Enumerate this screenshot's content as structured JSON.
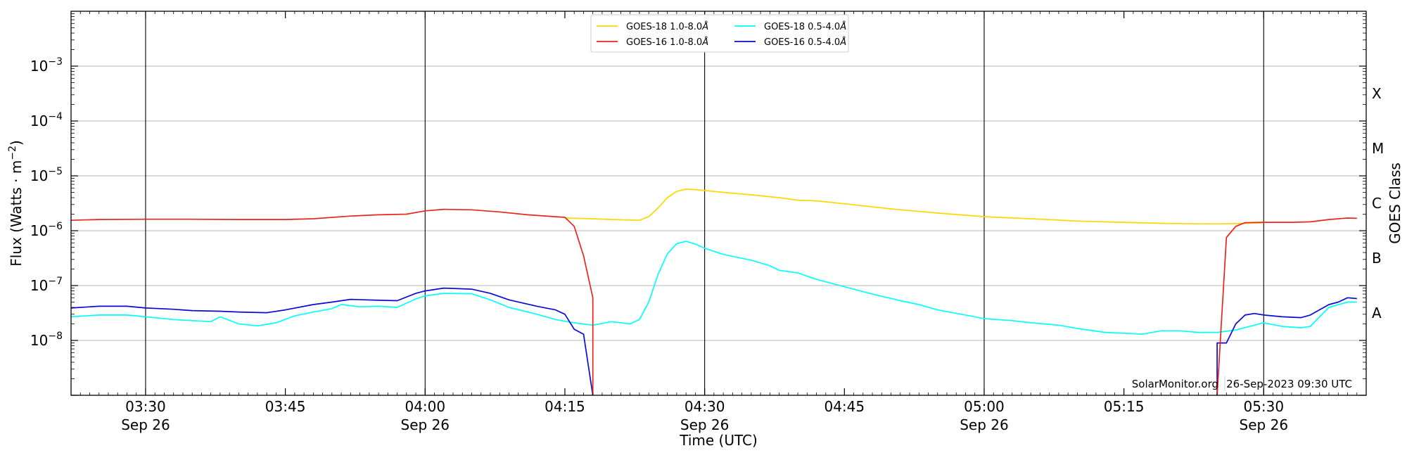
{
  "chart_data": {
    "type": "line",
    "xlabel": "Time (UTC)",
    "ylabel_parts": [
      "Flux (Watts · m",
      "−2",
      ")"
    ],
    "right_axis_label": "GOES Class",
    "xlim": [
      "03:22",
      "05:41"
    ],
    "ylim": [
      1e-09,
      0.01
    ],
    "y_scale": "log",
    "grid": "horizontal at decades",
    "vertical_lines_at": [
      "03:30",
      "04:00",
      "04:30",
      "05:00",
      "05:30"
    ],
    "x_ticks": [
      {
        "time": "03:30",
        "label": "03:30",
        "date": "Sep 26"
      },
      {
        "time": "03:45",
        "label": "03:45",
        "date": ""
      },
      {
        "time": "04:00",
        "label": "04:00",
        "date": "Sep 26"
      },
      {
        "time": "04:15",
        "label": "04:15",
        "date": ""
      },
      {
        "time": "04:30",
        "label": "04:30",
        "date": "Sep 26"
      },
      {
        "time": "04:45",
        "label": "04:45",
        "date": ""
      },
      {
        "time": "05:00",
        "label": "05:00",
        "date": "Sep 26"
      },
      {
        "time": "05:15",
        "label": "05:15",
        "date": ""
      },
      {
        "time": "05:30",
        "label": "05:30",
        "date": "Sep 26"
      }
    ],
    "y_ticks": [
      {
        "exp": -8,
        "label": "10",
        "sup": "−8"
      },
      {
        "exp": -7,
        "label": "10",
        "sup": "−7"
      },
      {
        "exp": -6,
        "label": "10",
        "sup": "−6"
      },
      {
        "exp": -5,
        "label": "10",
        "sup": "−5"
      },
      {
        "exp": -4,
        "label": "10",
        "sup": "−4"
      },
      {
        "exp": -3,
        "label": "10",
        "sup": "−3"
      }
    ],
    "goes_classes": [
      {
        "label": "A",
        "exp": -7.5
      },
      {
        "label": "B",
        "exp": -6.5
      },
      {
        "label": "C",
        "exp": -5.5
      },
      {
        "label": "M",
        "exp": -4.5
      },
      {
        "label": "X",
        "exp": -3.5
      }
    ],
    "legend_position": "top-center",
    "series": [
      {
        "name": "GOES-18 1.0-8.0Å",
        "name_text": "GOES-18 1.0-8.0",
        "name_unit": "Å",
        "color": "#FFD700",
        "points": [
          [
            "04:15",
            1.7e-06
          ],
          [
            "04:18",
            1.65e-06
          ],
          [
            "04:20",
            1.6e-06
          ],
          [
            "04:23",
            1.55e-06
          ],
          [
            "04:24",
            1.8e-06
          ],
          [
            "04:25",
            2.6e-06
          ],
          [
            "04:26",
            4e-06
          ],
          [
            "04:27",
            5.2e-06
          ],
          [
            "04:28",
            5.7e-06
          ],
          [
            "04:29",
            5.6e-06
          ],
          [
            "04:30",
            5.4e-06
          ],
          [
            "04:32",
            5e-06
          ],
          [
            "04:35",
            4.5e-06
          ],
          [
            "04:38",
            4e-06
          ],
          [
            "04:40",
            3.6e-06
          ],
          [
            "04:42",
            3.5e-06
          ],
          [
            "04:45",
            3.1e-06
          ],
          [
            "04:50",
            2.5e-06
          ],
          [
            "04:55",
            2.1e-06
          ],
          [
            "05:00",
            1.8e-06
          ],
          [
            "05:05",
            1.65e-06
          ],
          [
            "05:10",
            1.5e-06
          ],
          [
            "05:15",
            1.42e-06
          ],
          [
            "05:20",
            1.35e-06
          ],
          [
            "05:25",
            1.33e-06
          ],
          [
            "05:28",
            1.36e-06
          ],
          [
            "05:30",
            1.4e-06
          ]
        ]
      },
      {
        "name": "GOES-16 1.0-8.0Å",
        "name_text": "GOES-16 1.0-8.0",
        "name_unit": "Å",
        "color": "#E8251E",
        "points": [
          [
            "03:22",
            1.55e-06
          ],
          [
            "03:25",
            1.6e-06
          ],
          [
            "03:30",
            1.62e-06
          ],
          [
            "03:35",
            1.62e-06
          ],
          [
            "03:40",
            1.6e-06
          ],
          [
            "03:45",
            1.6e-06
          ],
          [
            "03:48",
            1.65e-06
          ],
          [
            "03:52",
            1.85e-06
          ],
          [
            "03:55",
            1.95e-06
          ],
          [
            "03:58",
            2e-06
          ],
          [
            "04:00",
            2.3e-06
          ],
          [
            "04:02",
            2.45e-06
          ],
          [
            "04:05",
            2.4e-06
          ],
          [
            "04:08",
            2.2e-06
          ],
          [
            "04:11",
            1.95e-06
          ],
          [
            "04:15",
            1.75e-06
          ],
          [
            "04:16",
            1.2e-06
          ],
          [
            "04:17",
            3.5e-07
          ],
          [
            "04:18",
            6e-08
          ],
          [
            "04:18",
            1e-09
          ]
        ],
        "gaps": [],
        "segment2": [
          [
            "05:25",
            1e-09
          ],
          [
            "05:26",
            7.5e-07
          ],
          [
            "05:27",
            1.2e-06
          ],
          [
            "05:28",
            1.4e-06
          ],
          [
            "05:30",
            1.42e-06
          ],
          [
            "05:33",
            1.42e-06
          ],
          [
            "05:35",
            1.45e-06
          ],
          [
            "05:37",
            1.6e-06
          ],
          [
            "05:39",
            1.7e-06
          ],
          [
            "05:40",
            1.68e-06
          ]
        ]
      },
      {
        "name": "GOES-18 0.5-4.0Å",
        "name_text": "GOES-18 0.5-4.0",
        "name_unit": "Å",
        "color": "#00FFFF",
        "points": [
          [
            "03:22",
            2.7e-08
          ],
          [
            "03:25",
            2.9e-08
          ],
          [
            "03:28",
            2.9e-08
          ],
          [
            "03:30",
            2.7e-08
          ],
          [
            "03:33",
            2.4e-08
          ],
          [
            "03:35",
            2.3e-08
          ],
          [
            "03:37",
            2.2e-08
          ],
          [
            "03:38",
            2.7e-08
          ],
          [
            "03:40",
            2e-08
          ],
          [
            "03:42",
            1.85e-08
          ],
          [
            "03:44",
            2.1e-08
          ],
          [
            "03:46",
            2.8e-08
          ],
          [
            "03:48",
            3.3e-08
          ],
          [
            "03:50",
            3.8e-08
          ],
          [
            "03:51",
            4.5e-08
          ],
          [
            "03:53",
            4.1e-08
          ],
          [
            "03:55",
            4.2e-08
          ],
          [
            "03:57",
            4e-08
          ],
          [
            "03:59",
            5.7e-08
          ],
          [
            "04:00",
            6.5e-08
          ],
          [
            "04:02",
            7.2e-08
          ],
          [
            "04:05",
            7.1e-08
          ],
          [
            "04:07",
            5.5e-08
          ],
          [
            "04:09",
            4e-08
          ],
          [
            "04:12",
            3e-08
          ],
          [
            "04:14",
            2.4e-08
          ],
          [
            "04:16",
            2.1e-08
          ],
          [
            "04:18",
            1.9e-08
          ],
          [
            "04:20",
            2.2e-08
          ],
          [
            "04:22",
            2e-08
          ],
          [
            "04:23",
            2.4e-08
          ],
          [
            "04:24",
            5e-08
          ],
          [
            "04:25",
            1.6e-07
          ],
          [
            "04:26",
            3.8e-07
          ],
          [
            "04:27",
            5.8e-07
          ],
          [
            "04:28",
            6.4e-07
          ],
          [
            "04:29",
            5.7e-07
          ],
          [
            "04:30",
            4.8e-07
          ],
          [
            "04:32",
            3.7e-07
          ],
          [
            "04:35",
            2.9e-07
          ],
          [
            "04:37",
            2.3e-07
          ],
          [
            "04:38",
            1.9e-07
          ],
          [
            "04:40",
            1.7e-07
          ],
          [
            "04:42",
            1.3e-07
          ],
          [
            "04:45",
            9.5e-08
          ],
          [
            "04:48",
            7e-08
          ],
          [
            "04:51",
            5.3e-08
          ],
          [
            "04:53",
            4.5e-08
          ],
          [
            "04:55",
            3.6e-08
          ],
          [
            "04:58",
            2.9e-08
          ],
          [
            "05:00",
            2.5e-08
          ],
          [
            "05:03",
            2.3e-08
          ],
          [
            "05:05",
            2.1e-08
          ],
          [
            "05:08",
            1.9e-08
          ],
          [
            "05:10",
            1.65e-08
          ],
          [
            "05:13",
            1.4e-08
          ],
          [
            "05:15",
            1.35e-08
          ],
          [
            "05:17",
            1.3e-08
          ],
          [
            "05:19",
            1.5e-08
          ],
          [
            "05:21",
            1.5e-08
          ],
          [
            "05:23",
            1.4e-08
          ],
          [
            "05:25",
            1.4e-08
          ],
          [
            "05:27",
            1.55e-08
          ],
          [
            "05:29",
            1.9e-08
          ],
          [
            "05:30",
            2.1e-08
          ],
          [
            "05:32",
            1.8e-08
          ],
          [
            "05:34",
            1.7e-08
          ],
          [
            "05:35",
            1.8e-08
          ],
          [
            "05:36",
            2.7e-08
          ],
          [
            "05:37",
            4e-08
          ],
          [
            "05:39",
            5e-08
          ],
          [
            "05:40",
            5e-08
          ]
        ]
      },
      {
        "name": "GOES-16 0.5-4.0Å",
        "name_text": "GOES-16 0.5-4.0",
        "name_unit": "Å",
        "color": "#0A0AD8",
        "points": [
          [
            "03:22",
            3.9e-08
          ],
          [
            "03:25",
            4.2e-08
          ],
          [
            "03:28",
            4.2e-08
          ],
          [
            "03:30",
            3.9e-08
          ],
          [
            "03:33",
            3.7e-08
          ],
          [
            "03:35",
            3.5e-08
          ],
          [
            "03:38",
            3.4e-08
          ],
          [
            "03:40",
            3.3e-08
          ],
          [
            "03:43",
            3.2e-08
          ],
          [
            "03:45",
            3.6e-08
          ],
          [
            "03:48",
            4.5e-08
          ],
          [
            "03:50",
            5e-08
          ],
          [
            "03:52",
            5.6e-08
          ],
          [
            "03:55",
            5.4e-08
          ],
          [
            "03:57",
            5.3e-08
          ],
          [
            "03:59",
            7.2e-08
          ],
          [
            "04:00",
            8e-08
          ],
          [
            "04:02",
            9e-08
          ],
          [
            "04:05",
            8.6e-08
          ],
          [
            "04:07",
            7.2e-08
          ],
          [
            "04:09",
            5.5e-08
          ],
          [
            "04:12",
            4.2e-08
          ],
          [
            "04:14",
            3.6e-08
          ],
          [
            "04:15",
            3e-08
          ],
          [
            "04:16",
            1.6e-08
          ],
          [
            "04:17",
            1.3e-08
          ],
          [
            "04:18",
            1e-09
          ]
        ],
        "segment2": [
          [
            "05:25",
            1e-09
          ],
          [
            "05:25",
            9e-09
          ],
          [
            "05:26",
            9e-09
          ],
          [
            "05:27",
            2e-08
          ],
          [
            "05:28",
            2.9e-08
          ],
          [
            "05:29",
            3.1e-08
          ],
          [
            "05:30",
            2.9e-08
          ],
          [
            "05:32",
            2.7e-08
          ],
          [
            "05:34",
            2.6e-08
          ],
          [
            "05:35",
            2.9e-08
          ],
          [
            "05:37",
            4.5e-08
          ],
          [
            "05:38",
            5e-08
          ],
          [
            "05:39",
            6e-08
          ],
          [
            "05:40",
            5.8e-08
          ]
        ]
      }
    ],
    "credit_left": "SolarMonitor.org",
    "credit_right": "26-Sep-2023 09:30 UTC"
  }
}
